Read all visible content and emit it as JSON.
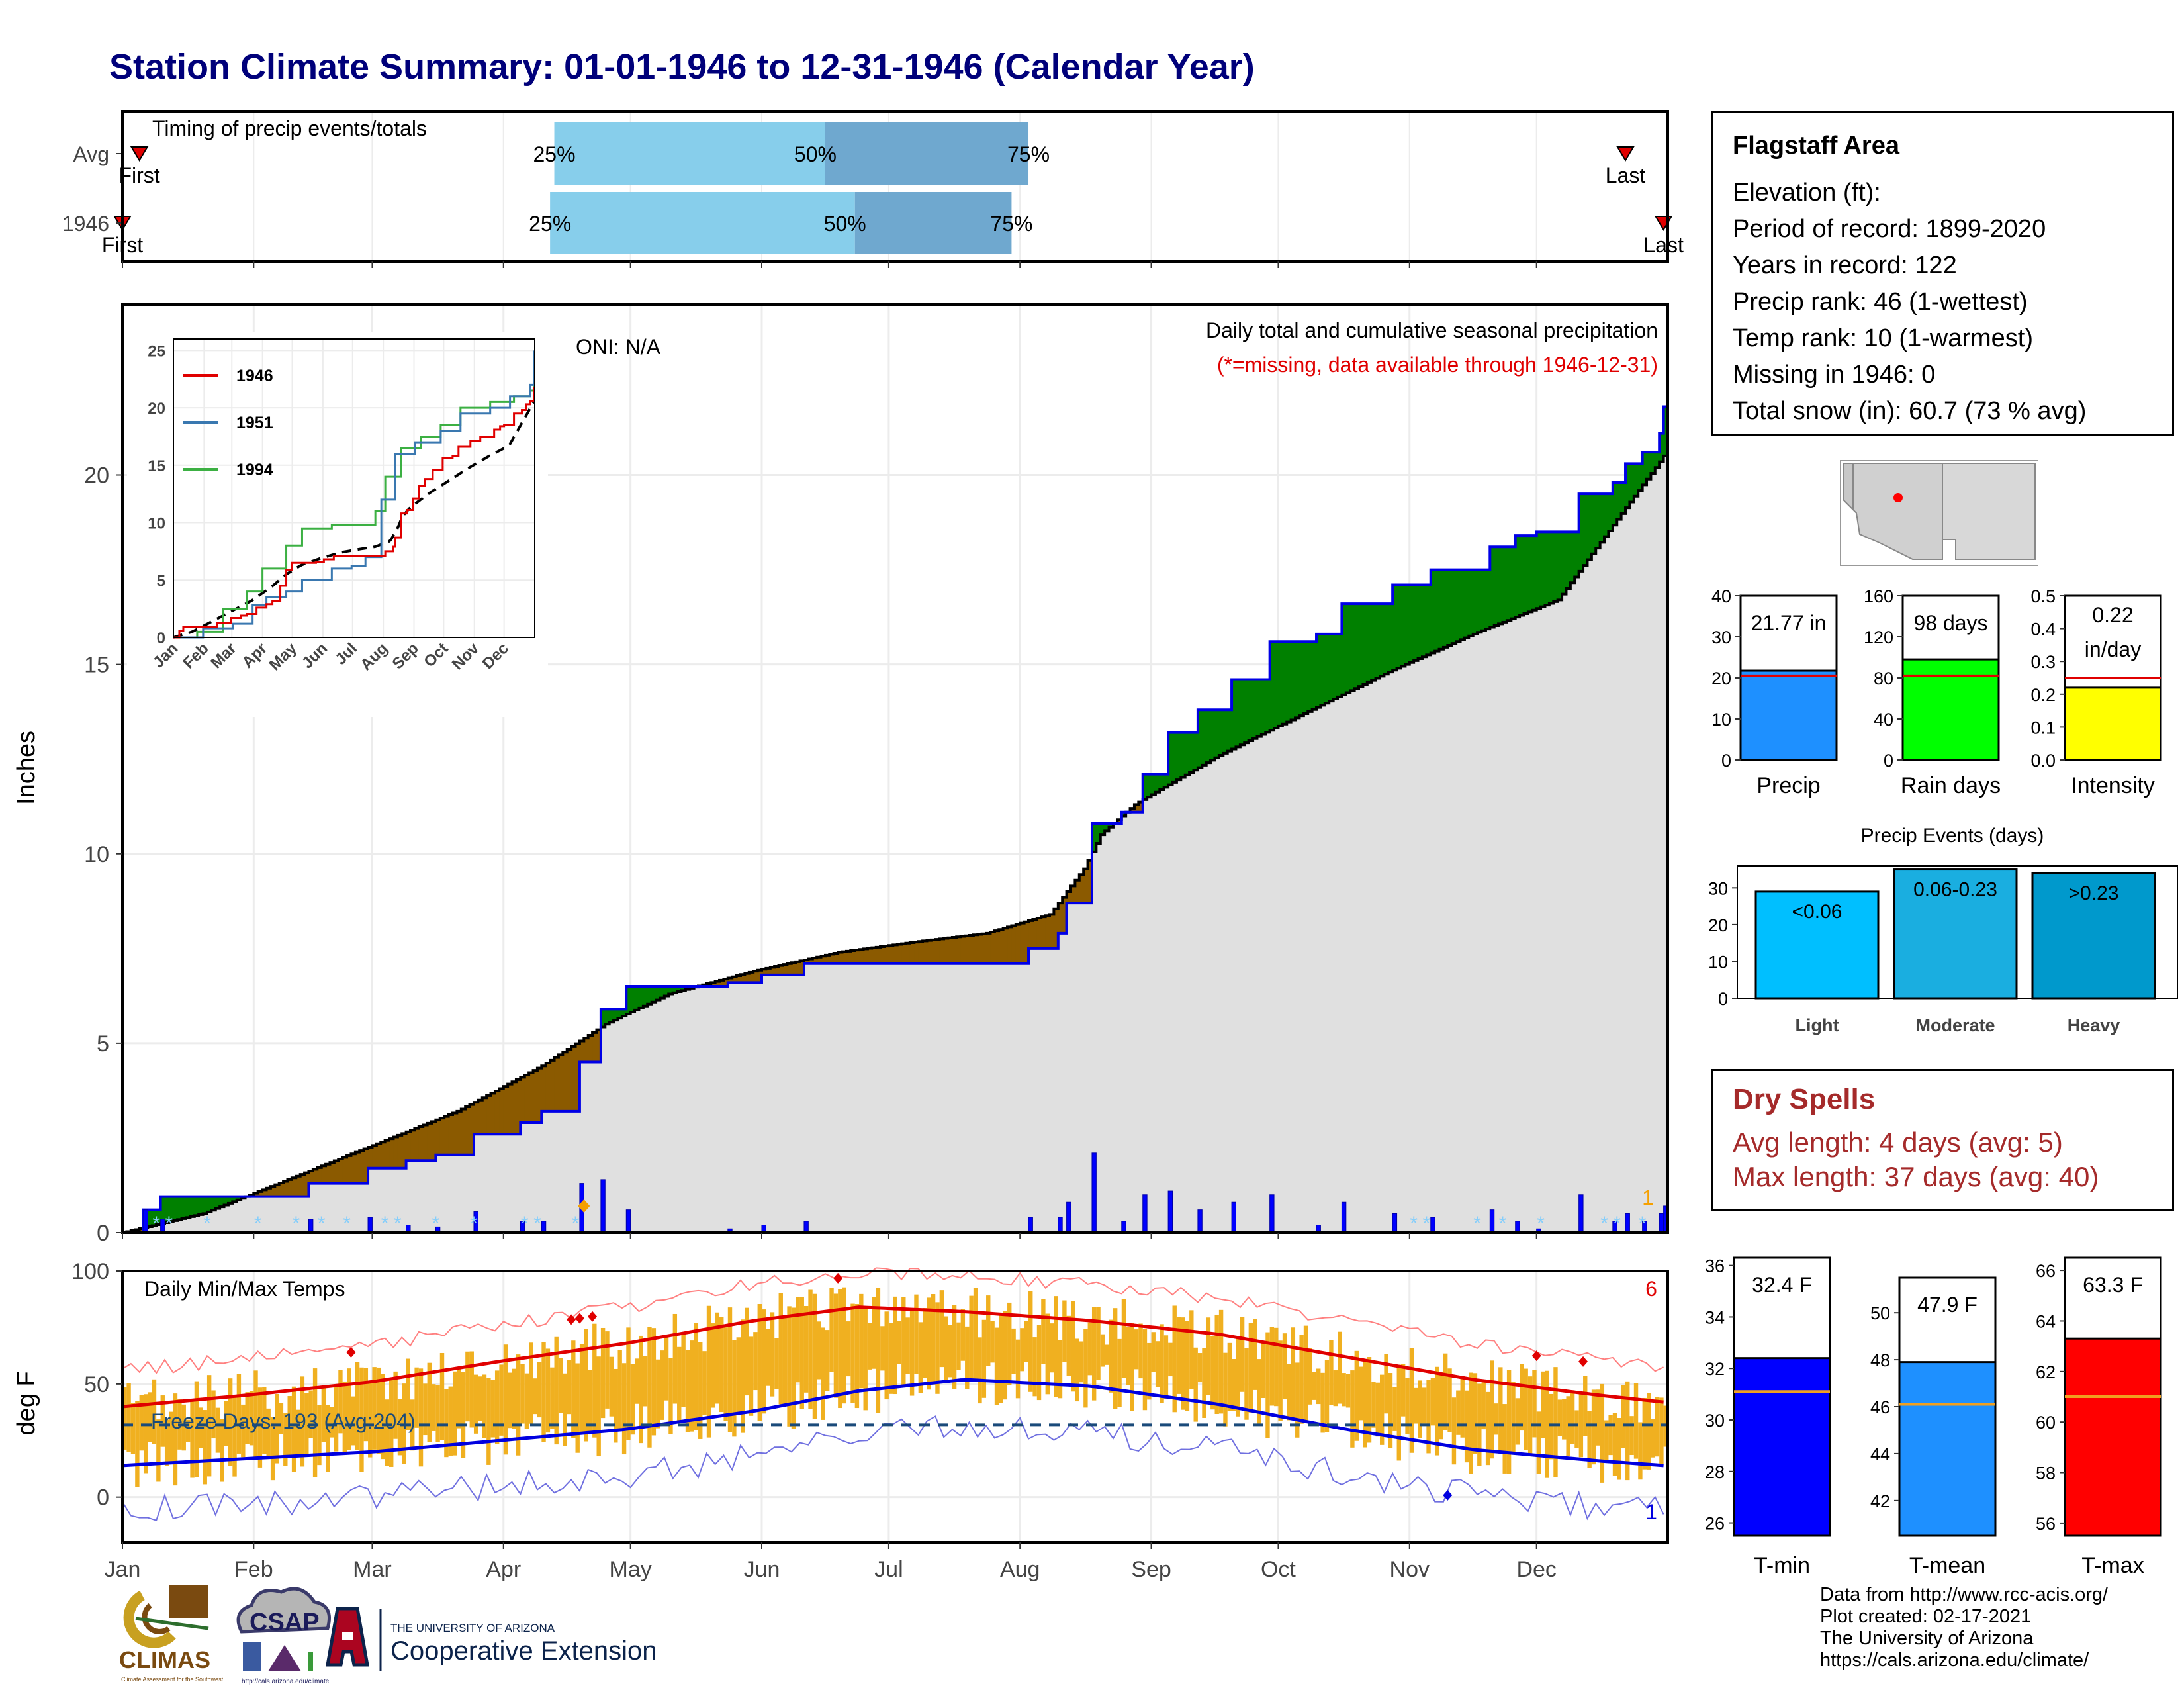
{
  "title": "Station Climate Summary: 01-01-1946 to 12-31-1946 (Calendar Year)",
  "months": [
    "Jan",
    "Feb",
    "Mar",
    "Apr",
    "May",
    "Jun",
    "Jul",
    "Aug",
    "Sep",
    "Oct",
    "Nov",
    "Dec"
  ],
  "timing": {
    "label": "Timing of precip events/totals",
    "rows": [
      {
        "name": "Avg",
        "first": "First",
        "last": "Last",
        "p25": "25%",
        "p50": "50%",
        "p75": "75%"
      },
      {
        "name": "1946",
        "first": "First",
        "last": "Last",
        "p25": "25%",
        "p50": "50%",
        "p75": "75%"
      }
    ]
  },
  "main": {
    "ylabel": "Inches",
    "oni": "ONI: N/A",
    "caption": "Daily total and cumulative seasonal precipitation",
    "missing_note": "(*=missing, data available through 1946-12-31)",
    "corner_count": "1",
    "yticks": [
      "0",
      "5",
      "10",
      "15",
      "20"
    ]
  },
  "inset": {
    "legend": [
      "1946",
      "1951",
      "1994"
    ],
    "yticks": [
      "0",
      "5",
      "10",
      "15",
      "20",
      "25"
    ],
    "months": [
      "Jan",
      "Feb",
      "Mar",
      "Apr",
      "May",
      "Jun",
      "Jul",
      "Aug",
      "Sep",
      "Oct",
      "Nov",
      "Dec"
    ]
  },
  "temps": {
    "label": "Daily Min/Max Temps",
    "ylabel": "deg F",
    "freeze": "Freeze Days: 193 (Avg:204)",
    "count_top": "6",
    "count_bottom": "1",
    "yticks": [
      "0",
      "50",
      "100"
    ]
  },
  "station": {
    "name": "Flagstaff Area",
    "lines": [
      "Elevation (ft):",
      "Period of record: 1899-2020",
      "Years in record: 122",
      "Precip rank: 46 (1-wettest)",
      "Temp rank: 10 (1-warmest)",
      "Missing in 1946: 0",
      "Total snow (in): 60.7 (73 % avg)"
    ]
  },
  "summary_bars": [
    {
      "label": "Precip",
      "value_text": "21.77 in",
      "value": 21.77,
      "avg": 20.5,
      "ymax": 40,
      "ticks": [
        "0",
        "10",
        "20",
        "30",
        "40"
      ],
      "color": "#1e90ff"
    },
    {
      "label": "Rain days",
      "value_text": "98 days",
      "value": 98,
      "avg": 82,
      "ymax": 160,
      "ticks": [
        "0",
        "40",
        "80",
        "120",
        "160"
      ],
      "color": "#00ff00"
    },
    {
      "label": "Intensity",
      "value_text": "0.22",
      "value_text2": "in/day",
      "value": 0.22,
      "avg": 0.25,
      "ymax": 0.5,
      "ticks": [
        "0.0",
        "0.1",
        "0.2",
        "0.3",
        "0.4",
        "0.5"
      ],
      "color": "#ffff00"
    }
  ],
  "events": {
    "title": "Precip Events (days)",
    "ticks": [
      "0",
      "10",
      "20",
      "30"
    ],
    "bars": [
      {
        "label": "Light",
        "range": "<0.06",
        "value": 29,
        "color": "#00bfff"
      },
      {
        "label": "Moderate",
        "range": "0.06-0.23",
        "value": 35,
        "color": "#1aaee0"
      },
      {
        "label": "Heavy",
        "range": ">0.23",
        "value": 34,
        "color": "#0099cc"
      }
    ]
  },
  "dry_spells": {
    "title": "Dry Spells",
    "avg": "Avg length: 4 days (avg: 5)",
    "max": "Max length: 37 days (avg: 40)"
  },
  "temp_bars": [
    {
      "label": "T-min",
      "value_text": "32.4 F",
      "value": 32.4,
      "avg": 31.1,
      "ymin": 25.5,
      "ymax": 36.3,
      "ticks": [
        "26",
        "28",
        "30",
        "32",
        "34",
        "36"
      ],
      "color": "#0000ff"
    },
    {
      "label": "T-mean",
      "value_text": "47.9 F",
      "value": 47.9,
      "avg": 46.1,
      "ymin": 40.5,
      "ymax": 51.5,
      "ticks": [
        "42",
        "44",
        "46",
        "48",
        "50"
      ],
      "color": "#1e90ff"
    },
    {
      "label": "T-max",
      "value_text": "63.3 F",
      "value": 63.3,
      "avg": 61.0,
      "ymin": 55.5,
      "ymax": 66.5,
      "ticks": [
        "56",
        "58",
        "60",
        "62",
        "64",
        "66"
      ],
      "color": "#ff0000"
    }
  ],
  "logos": {
    "climas": "CLIMAS",
    "climas_sub": "Climate Assessment for the Southwest",
    "csap": "CSAP",
    "csap_url": "http://cals.arizona.edu/climate",
    "ua_line1": "THE UNIVERSITY OF ARIZONA",
    "ua_line2": "Cooperative Extension"
  },
  "credits": [
    "Data from http://www.rcc-acis.org/",
    "Plot created: 02-17-2021",
    "The University of Arizona",
    "https://cals.arizona.edu/climate/"
  ],
  "chart_data": [
    {
      "type": "area",
      "title": "Daily total and cumulative seasonal precipitation",
      "ylabel": "Inches",
      "ylim": [
        0,
        24.5
      ],
      "x_unit": "day of year",
      "series": [
        {
          "name": "cumulative 1946",
          "points": [
            [
              1,
              0
            ],
            [
              6,
              0.6
            ],
            [
              10,
              0.95
            ],
            [
              32,
              0.95
            ],
            [
              45,
              1.3
            ],
            [
              59,
              1.7
            ],
            [
              68,
              1.9
            ],
            [
              75,
              2.05
            ],
            [
              84,
              2.6
            ],
            [
              95,
              2.9
            ],
            [
              100,
              3.2
            ],
            [
              109,
              4.5
            ],
            [
              114,
              5.9
            ],
            [
              120,
              6.5
            ],
            [
              135,
              6.5
            ],
            [
              144,
              6.6
            ],
            [
              152,
              6.8
            ],
            [
              162,
              7.1
            ],
            [
              206,
              7.1
            ],
            [
              215,
              7.5
            ],
            [
              222,
              7.9
            ],
            [
              224,
              8.7
            ],
            [
              230,
              10.8
            ],
            [
              237,
              11.1
            ],
            [
              242,
              12.1
            ],
            [
              248,
              13.2
            ],
            [
              255,
              13.8
            ],
            [
              263,
              14.6
            ],
            [
              272,
              15.6
            ],
            [
              283,
              15.8
            ],
            [
              289,
              16.6
            ],
            [
              301,
              17.1
            ],
            [
              310,
              17.5
            ],
            [
              324,
              18.1
            ],
            [
              330,
              18.4
            ],
            [
              335,
              18.5
            ],
            [
              345,
              19.5
            ],
            [
              353,
              19.8
            ],
            [
              356,
              20.3
            ],
            [
              360,
              20.6
            ],
            [
              364,
              21.1
            ],
            [
              365,
              21.8
            ]
          ]
        },
        {
          "name": "cumulative average",
          "points": [
            [
              1,
              0
            ],
            [
              20,
              0.5
            ],
            [
              40,
              1.4
            ],
            [
              60,
              2.3
            ],
            [
              80,
              3.2
            ],
            [
              100,
              4.4
            ],
            [
              115,
              5.5
            ],
            [
              130,
              6.3
            ],
            [
              150,
              6.9
            ],
            [
              170,
              7.4
            ],
            [
              190,
              7.7
            ],
            [
              205,
              7.9
            ],
            [
              220,
              8.4
            ],
            [
              228,
              9.6
            ],
            [
              232,
              10.5
            ],
            [
              240,
              11.3
            ],
            [
              260,
              12.6
            ],
            [
              280,
              13.7
            ],
            [
              300,
              14.8
            ],
            [
              320,
              15.8
            ],
            [
              340,
              16.7
            ],
            [
              365,
              20.5
            ]
          ]
        }
      ]
    },
    {
      "type": "line",
      "title": "Daily Min/Max Temps",
      "ylabel": "deg F",
      "ylim": [
        -20,
        100
      ],
      "series": [
        {
          "name": "avg max",
          "points": [
            [
              1,
              40
            ],
            [
              30,
              45
            ],
            [
              60,
              51
            ],
            [
              90,
              60
            ],
            [
              120,
              68
            ],
            [
              150,
              78
            ],
            [
              175,
              84
            ],
            [
              200,
              82
            ],
            [
              230,
              78
            ],
            [
              260,
              72
            ],
            [
              290,
              62
            ],
            [
              320,
              52
            ],
            [
              350,
              45
            ],
            [
              365,
              42
            ]
          ]
        },
        {
          "name": "avg min",
          "points": [
            [
              1,
              14
            ],
            [
              30,
              17
            ],
            [
              60,
              20
            ],
            [
              90,
              25
            ],
            [
              120,
              30
            ],
            [
              150,
              38
            ],
            [
              175,
              47
            ],
            [
              200,
              52
            ],
            [
              230,
              49
            ],
            [
              260,
              41
            ],
            [
              290,
              30
            ],
            [
              320,
              21
            ],
            [
              350,
              16
            ],
            [
              365,
              14
            ]
          ]
        },
        {
          "name": "freeze line",
          "points": [
            [
              1,
              32
            ],
            [
              365,
              32
            ]
          ]
        }
      ]
    }
  ]
}
